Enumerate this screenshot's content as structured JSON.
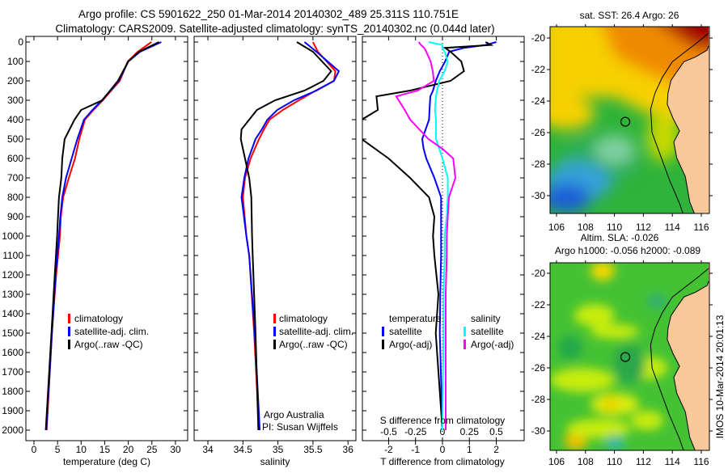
{
  "header": {
    "line1": "Argo profile: CS 5901622_250 01-Mar-2014 20140302_489 25.311S 110.751E",
    "line2": "Climatology: CARS2009. Satellite-adjusted climatology: synTS_20140302.nc (0.044d later)"
  },
  "credits": {
    "org": "Argo Australia",
    "pi": "PI: Susan Wijffels"
  },
  "timestamp": "IMOS 10-Mar-2014 20:01:13",
  "colors": {
    "climatology": "#ff0000",
    "satellite": "#0000ff",
    "argo": "#000000",
    "sal_sat": "#00ffff",
    "sal_argo": "#ff00ff",
    "land": "#f9c898"
  },
  "chart_data": [
    {
      "type": "line",
      "title": "",
      "xlabel": "temperature (deg C)",
      "ylabel": "",
      "xlim": [
        -1.7,
        32.6
      ],
      "ylim": [
        2050,
        0
      ],
      "xticks": [
        "0",
        "5",
        "10",
        "15",
        "20",
        "25",
        "30"
      ],
      "yticks": [
        "0",
        "100",
        "200",
        "300",
        "400",
        "500",
        "600",
        "700",
        "800",
        "900",
        "1000",
        "1100",
        "1200",
        "1300",
        "1400",
        "1500",
        "1600",
        "1700",
        "1800",
        "1900",
        "2000"
      ],
      "legend": [
        "climatology",
        "satellite-adj. clim.",
        "Argo(..raw -QC)"
      ],
      "depth": [
        0,
        50,
        100,
        200,
        300,
        350,
        400,
        500,
        600,
        700,
        800,
        900,
        1000,
        1200,
        1500,
        2000
      ],
      "series": [
        {
          "name": "climatology",
          "color": "#ff0000",
          "values": [
            24.9,
            22.0,
            19.9,
            18.2,
            14.6,
            12.6,
            10.8,
            9.6,
            8.7,
            7.4,
            6.2,
            5.7,
            5.5,
            4.7,
            3.8,
            2.7
          ]
        },
        {
          "name": "satellite-adj. clim.",
          "color": "#0000ff",
          "values": [
            27.0,
            22.5,
            20.0,
            18.0,
            14.4,
            12.4,
            10.6,
            9.2,
            8.0,
            6.8,
            6.0,
            5.6,
            5.3,
            4.6,
            3.8,
            2.6
          ]
        },
        {
          "name": "Argo(..raw -QC)",
          "color": "#000000",
          "values": [
            26.5,
            22.3,
            20.0,
            17.8,
            14.5,
            10.0,
            8.6,
            6.5,
            6.0,
            5.8,
            5.3,
            5.1,
            4.9,
            4.4,
            3.7,
            2.5
          ]
        }
      ]
    },
    {
      "type": "line",
      "xlabel": "salinity",
      "xlim": [
        33.8,
        36.1
      ],
      "ylim": [
        2050,
        0
      ],
      "xticks": [
        "34",
        "34.5",
        "35",
        "35.5",
        "36"
      ],
      "legend": [
        "climatology",
        "satellite-adj. clim.",
        "Argo(..raw -QC)"
      ],
      "depth": [
        0,
        50,
        150,
        200,
        250,
        300,
        350,
        400,
        450,
        500,
        600,
        700,
        800,
        1000,
        1100,
        1500,
        2000
      ],
      "series": [
        {
          "name": "climatology",
          "color": "#ff0000",
          "values": [
            35.5,
            35.57,
            35.82,
            35.8,
            35.54,
            35.3,
            35.07,
            34.88,
            34.8,
            34.73,
            34.61,
            34.53,
            34.5,
            34.55,
            34.59,
            34.66,
            34.73
          ]
        },
        {
          "name": "satellite-adj. clim.",
          "color": "#0000ff",
          "values": [
            35.38,
            35.55,
            35.87,
            35.8,
            35.55,
            35.23,
            34.99,
            34.85,
            34.77,
            34.68,
            34.58,
            34.52,
            34.48,
            34.55,
            34.59,
            34.67,
            34.74
          ]
        },
        {
          "name": "Argo(..raw -QC)",
          "color": "#000000",
          "values": [
            35.27,
            35.5,
            35.76,
            35.65,
            35.38,
            34.96,
            34.7,
            34.59,
            34.48,
            34.47,
            34.53,
            34.59,
            34.62,
            34.63,
            34.64,
            34.68,
            34.72
          ]
        }
      ]
    },
    {
      "type": "line",
      "xlabel": "T difference from climatology",
      "x2label": "S difference from climatology",
      "xlim": [
        -3.0,
        3.0
      ],
      "x2lim": [
        -0.75,
        0.75
      ],
      "ylim": [
        2050,
        0
      ],
      "xticks": [
        "-2",
        "-1",
        "0",
        "1",
        "2"
      ],
      "x2ticks": [
        "-0.5",
        "-0.25",
        "0",
        "0.25",
        "0.5"
      ],
      "legend_t": {
        "title": "temperature",
        "items": [
          "satellite",
          "Argo(-adj)"
        ]
      },
      "legend_s": {
        "title": "salinity",
        "items": [
          "satellite",
          "Argo(-adj)"
        ]
      },
      "depth": [
        0,
        15,
        30,
        50,
        100,
        150,
        200,
        250,
        280,
        350,
        400,
        500,
        550,
        600,
        700,
        800,
        900,
        1000,
        1100,
        1300,
        1500,
        2000
      ],
      "series": [
        {
          "name": "temperature satellite",
          "axis": "T",
          "color": "#0000ff",
          "values": [
            2.0,
            1.6,
            0.8,
            0.25,
            0.1,
            -0.1,
            -0.25,
            -0.35,
            -0.45,
            -0.48,
            -0.5,
            -0.75,
            -0.7,
            -0.6,
            -0.3,
            -0.05,
            -0.05,
            -0.05,
            -0.05,
            -0.08,
            -0.1,
            0
          ]
        },
        {
          "name": "temperature Argo(-adj)",
          "axis": "T",
          "color": "#000000",
          "values": [
            1.6,
            1.8,
            0.1,
            0.3,
            0.7,
            0.8,
            0.3,
            -1.2,
            -2.45,
            -2.4,
            -3.0,
            -3.0,
            -2.5,
            -2.0,
            -1.2,
            -0.5,
            -0.3,
            -0.35,
            -0.3,
            -0.15,
            -0.25,
            0
          ]
        },
        {
          "name": "salinity satellite",
          "axis": "S",
          "color": "#00ffff",
          "values": [
            -0.13,
            0,
            0,
            0.02,
            0.05,
            0.02,
            -0.03,
            -0.05,
            -0.06,
            -0.07,
            -0.06,
            -0.06,
            -0.03,
            0,
            0.05,
            0.05,
            0.04,
            0.02,
            0.02,
            0.01,
            0.01,
            0
          ]
        },
        {
          "name": "salinity Argo(-adj)",
          "axis": "S",
          "color": "#ff00ff",
          "values": [
            -0.22,
            -0.2,
            -0.17,
            -0.15,
            -0.11,
            -0.09,
            -0.08,
            -0.23,
            -0.43,
            -0.35,
            -0.3,
            -0.13,
            0,
            0.1,
            0.12,
            0.06,
            0.05,
            0.04,
            0.04,
            0.03,
            0.03,
            0.03
          ]
        }
      ]
    }
  ],
  "maps": {
    "lon_ticks": [
      "106",
      "108",
      "110",
      "112",
      "114",
      "116"
    ],
    "lat_ticks": [
      "-20",
      "-22",
      "-24",
      "-26",
      "-28",
      "-30"
    ],
    "profile_location": {
      "lon": 110.751,
      "lat": -25.311
    },
    "sst": {
      "title": "sat. SST: 26.4 Argo: 26"
    },
    "sla": {
      "title1": "Altim. SLA: -0.026",
      "title2": "Argo h1000: -0.056 h2000: -0.089"
    }
  }
}
